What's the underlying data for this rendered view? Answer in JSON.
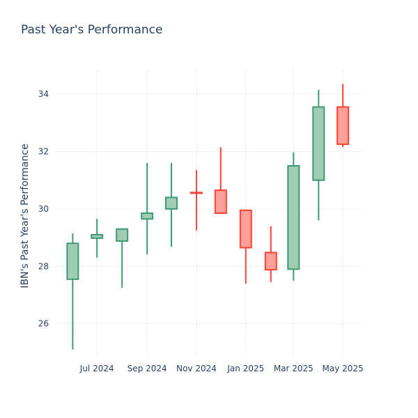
{
  "chart_data": {
    "type": "candlestick",
    "title": "Past Year's Performance",
    "xlabel": "",
    "ylabel": "IBN's Past Year's Performance",
    "ylim": [
      24.9,
      34.85
    ],
    "yticks": [
      26,
      28,
      30,
      32,
      34
    ],
    "xlim": [
      "2024-05-11",
      "2025-05-25"
    ],
    "xticks": [
      {
        "date": "2024-07-01",
        "label": "Jul 2024"
      },
      {
        "date": "2024-09-01",
        "label": "Sep 2024"
      },
      {
        "date": "2024-11-01",
        "label": "Nov 2024"
      },
      {
        "date": "2025-01-01",
        "label": "Jan 2025"
      },
      {
        "date": "2025-03-01",
        "label": "Mar 2025"
      },
      {
        "date": "2025-05-01",
        "label": "May 2025"
      }
    ],
    "grid": true,
    "colors": {
      "increasing": "#3d9970",
      "increasing_fill": "#9fcdb4",
      "decreasing": "#ff4136",
      "decreasing_fill": "#ff9f9a",
      "grid": "#eef0f4"
    },
    "candles": [
      {
        "date": "2024-06-01",
        "open": 27.55,
        "high": 29.15,
        "low": 25.1,
        "close": 28.8
      },
      {
        "date": "2024-07-01",
        "open": 28.98,
        "high": 29.65,
        "low": 28.3,
        "close": 29.1
      },
      {
        "date": "2024-08-01",
        "open": 28.88,
        "high": 29.3,
        "low": 27.25,
        "close": 29.3
      },
      {
        "date": "2024-09-01",
        "open": 29.65,
        "high": 31.6,
        "low": 28.42,
        "close": 29.85
      },
      {
        "date": "2024-10-01",
        "open": 30.0,
        "high": 31.6,
        "low": 28.68,
        "close": 30.4
      },
      {
        "date": "2024-11-01",
        "open": 30.57,
        "high": 31.35,
        "low": 29.25,
        "close": 30.55
      },
      {
        "date": "2024-12-01",
        "open": 30.65,
        "high": 32.15,
        "low": 29.85,
        "close": 29.85
      },
      {
        "date": "2025-01-01",
        "open": 29.95,
        "high": 29.98,
        "low": 27.4,
        "close": 28.65
      },
      {
        "date": "2025-02-01",
        "open": 28.48,
        "high": 29.4,
        "low": 27.45,
        "close": 27.88
      },
      {
        "date": "2025-03-01",
        "open": 27.9,
        "high": 31.97,
        "low": 27.5,
        "close": 31.5
      },
      {
        "date": "2025-04-01",
        "open": 31.0,
        "high": 34.15,
        "low": 29.6,
        "close": 33.55
      },
      {
        "date": "2025-05-01",
        "open": 33.55,
        "high": 34.35,
        "low": 32.15,
        "close": 32.25
      }
    ]
  }
}
